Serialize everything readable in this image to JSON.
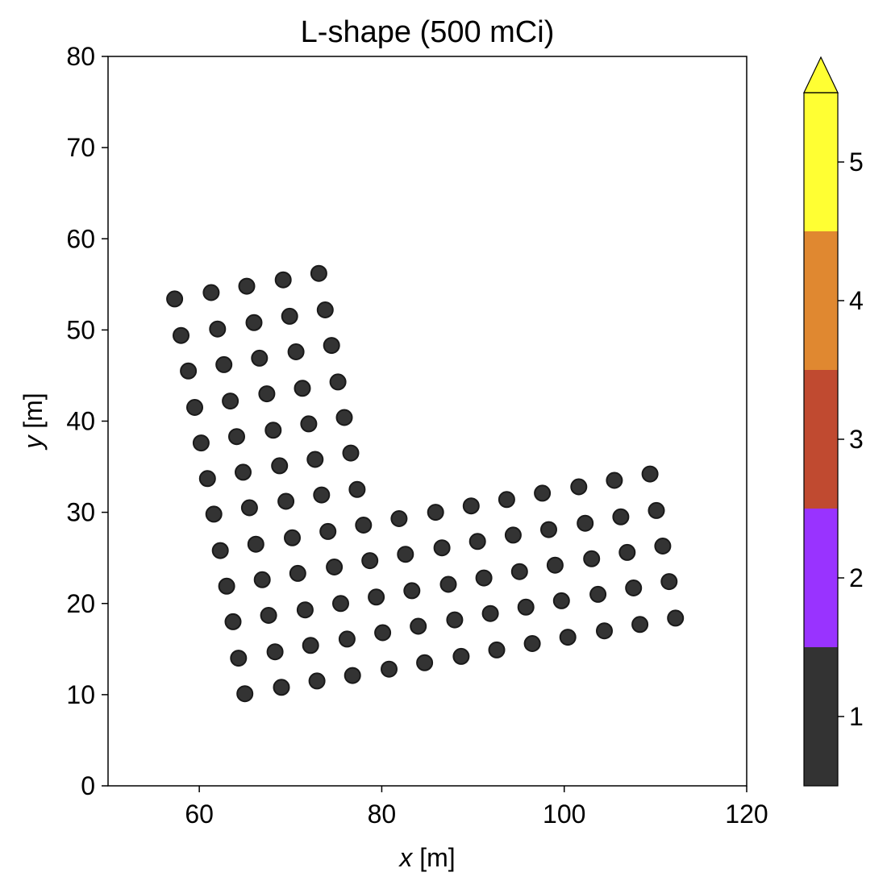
{
  "chart_data": {
    "type": "scatter",
    "title": "L-shape (500 mCi)",
    "xlabel_var": "x",
    "xlabel_unit": " [m]",
    "ylabel_var": "y",
    "ylabel_unit": " [m]",
    "xlim": [
      50,
      120
    ],
    "ylim": [
      0,
      80
    ],
    "xticks": [
      60,
      80,
      100,
      120
    ],
    "yticks": [
      0,
      10,
      20,
      30,
      40,
      50,
      60,
      70,
      80
    ],
    "grid": false,
    "point_color": "#333333",
    "points": [
      [
        57.3,
        53.4
      ],
      [
        61.3,
        54.1
      ],
      [
        65.2,
        54.8
      ],
      [
        69.2,
        55.5
      ],
      [
        73.1,
        56.2
      ],
      [
        58.0,
        49.4
      ],
      [
        62.0,
        50.1
      ],
      [
        66.0,
        50.8
      ],
      [
        69.9,
        51.5
      ],
      [
        73.8,
        52.2
      ],
      [
        58.8,
        45.5
      ],
      [
        62.7,
        46.2
      ],
      [
        66.6,
        46.9
      ],
      [
        70.6,
        47.6
      ],
      [
        74.5,
        48.3
      ],
      [
        59.5,
        41.5
      ],
      [
        63.4,
        42.2
      ],
      [
        67.4,
        43.0
      ],
      [
        71.3,
        43.6
      ],
      [
        75.2,
        44.3
      ],
      [
        60.2,
        37.6
      ],
      [
        64.1,
        38.3
      ],
      [
        68.1,
        39.0
      ],
      [
        72.0,
        39.7
      ],
      [
        75.9,
        40.4
      ],
      [
        60.9,
        33.7
      ],
      [
        64.8,
        34.4
      ],
      [
        68.8,
        35.1
      ],
      [
        72.7,
        35.8
      ],
      [
        76.6,
        36.5
      ],
      [
        61.6,
        29.8
      ],
      [
        65.5,
        30.5
      ],
      [
        69.5,
        31.2
      ],
      [
        73.4,
        31.9
      ],
      [
        77.3,
        32.5
      ],
      [
        62.3,
        25.8
      ],
      [
        66.2,
        26.5
      ],
      [
        70.2,
        27.2
      ],
      [
        74.1,
        27.9
      ],
      [
        78.0,
        28.6
      ],
      [
        81.9,
        29.3
      ],
      [
        85.9,
        30.0
      ],
      [
        89.8,
        30.7
      ],
      [
        93.7,
        31.4
      ],
      [
        97.6,
        32.1
      ],
      [
        101.6,
        32.8
      ],
      [
        105.5,
        33.5
      ],
      [
        109.4,
        34.2
      ],
      [
        63.0,
        21.9
      ],
      [
        66.9,
        22.6
      ],
      [
        70.8,
        23.3
      ],
      [
        74.8,
        24.0
      ],
      [
        78.7,
        24.7
      ],
      [
        82.6,
        25.4
      ],
      [
        86.6,
        26.1
      ],
      [
        90.5,
        26.8
      ],
      [
        94.4,
        27.5
      ],
      [
        98.3,
        28.1
      ],
      [
        102.3,
        28.8
      ],
      [
        106.2,
        29.5
      ],
      [
        110.1,
        30.2
      ],
      [
        63.7,
        18.0
      ],
      [
        67.6,
        18.7
      ],
      [
        71.6,
        19.3
      ],
      [
        75.5,
        20.0
      ],
      [
        79.4,
        20.7
      ],
      [
        83.3,
        21.4
      ],
      [
        87.3,
        22.1
      ],
      [
        91.2,
        22.8
      ],
      [
        95.1,
        23.5
      ],
      [
        99.0,
        24.2
      ],
      [
        103.0,
        24.9
      ],
      [
        106.9,
        25.6
      ],
      [
        110.8,
        26.3
      ],
      [
        64.3,
        14.0
      ],
      [
        68.3,
        14.7
      ],
      [
        72.2,
        15.4
      ],
      [
        76.2,
        16.1
      ],
      [
        80.1,
        16.8
      ],
      [
        84.0,
        17.5
      ],
      [
        88.0,
        18.2
      ],
      [
        91.9,
        18.9
      ],
      [
        95.8,
        19.6
      ],
      [
        99.7,
        20.3
      ],
      [
        103.7,
        21.0
      ],
      [
        107.6,
        21.7
      ],
      [
        111.5,
        22.4
      ],
      [
        65.0,
        10.1
      ],
      [
        69.0,
        10.8
      ],
      [
        72.9,
        11.5
      ],
      [
        76.8,
        12.1
      ],
      [
        80.8,
        12.8
      ],
      [
        84.7,
        13.5
      ],
      [
        88.7,
        14.2
      ],
      [
        92.6,
        14.9
      ],
      [
        96.5,
        15.6
      ],
      [
        100.4,
        16.3
      ],
      [
        104.4,
        17.0
      ],
      [
        108.3,
        17.7
      ],
      [
        112.2,
        18.4
      ]
    ],
    "colorbar": {
      "bands": [
        {
          "value": 1,
          "color": "#333333"
        },
        {
          "value": 2,
          "color": "#9933ff"
        },
        {
          "value": 3,
          "color": "#c04a30"
        },
        {
          "value": 4,
          "color": "#e08830"
        },
        {
          "value": 5,
          "color": "#ffff33"
        }
      ],
      "ticks": [
        "1",
        "2",
        "3",
        "4",
        "5"
      ],
      "extend": "max"
    }
  }
}
